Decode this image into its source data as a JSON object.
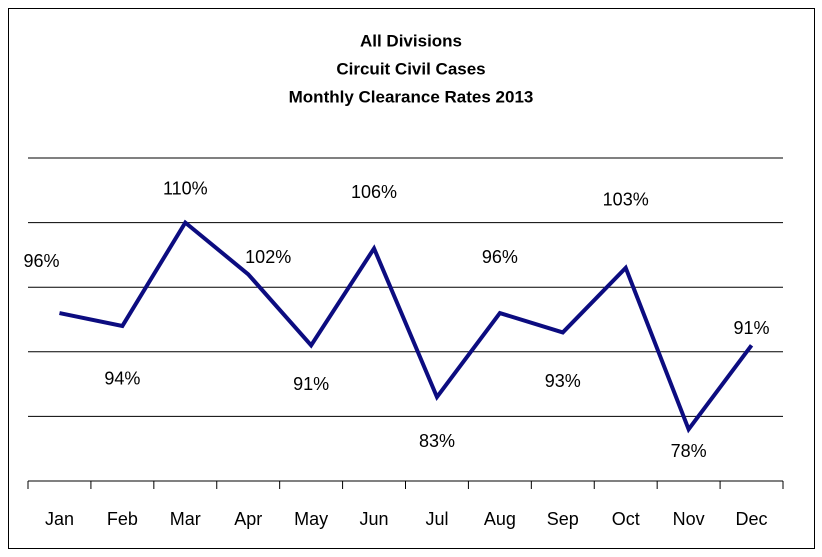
{
  "chart_data": {
    "type": "line",
    "title": [
      "All Divisions",
      "Circuit Civil Cases",
      "Monthly Clearance Rates 2013"
    ],
    "categories": [
      "Jan",
      "Feb",
      "Mar",
      "Apr",
      "May",
      "Jun",
      "Jul",
      "Aug",
      "Sep",
      "Oct",
      "Nov",
      "Dec"
    ],
    "series": [
      {
        "color": "#0c0c80",
        "values": [
          96,
          94,
          110,
          102,
          91,
          106,
          83,
          96,
          93,
          103,
          78,
          91
        ],
        "value_labels": [
          "96%",
          "94%",
          "110%",
          "102%",
          "91%",
          "106%",
          "83%",
          "96%",
          "93%",
          "103%",
          "78%",
          "91%"
        ]
      }
    ],
    "ylim": [
      70,
      120
    ],
    "yticks": [
      70,
      80,
      90,
      100,
      110,
      120
    ],
    "grid": true
  }
}
